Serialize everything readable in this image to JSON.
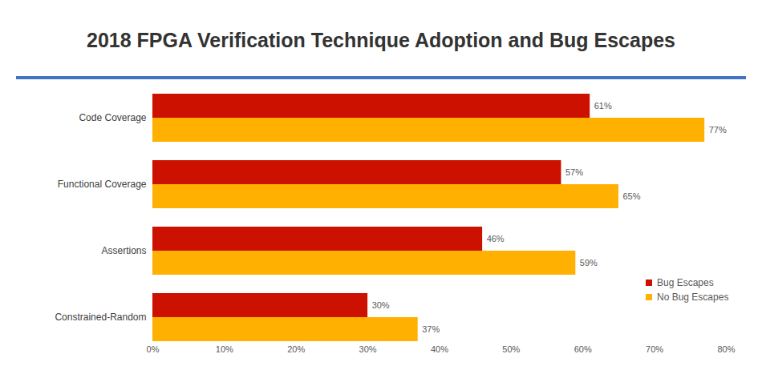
{
  "chart_data": {
    "type": "bar",
    "title": "2018 FPGA Verification Technique Adoption and Bug Escapes",
    "orientation": "horizontal",
    "categories": [
      "Code Coverage",
      "Functional Coverage",
      "Assertions",
      "Constrained-Random"
    ],
    "series": [
      {
        "name": "Bug Escapes",
        "color": "#cc1100",
        "values": [
          61,
          57,
          46,
          30
        ],
        "value_labels": [
          "61%",
          "57%",
          "46%",
          "30%"
        ]
      },
      {
        "name": "No Bug Escapes",
        "color": "#ffb000",
        "values": [
          77,
          65,
          59,
          37
        ],
        "value_labels": [
          "77%",
          "65%",
          "59%",
          "37%"
        ]
      }
    ],
    "xlim": [
      0,
      80
    ],
    "xticks": [
      {
        "value": 0,
        "label": "0%"
      },
      {
        "value": 10,
        "label": "10%"
      },
      {
        "value": 20,
        "label": "20%"
      },
      {
        "value": 30,
        "label": "30%"
      },
      {
        "value": 40,
        "label": "40%"
      },
      {
        "value": 50,
        "label": "50%"
      },
      {
        "value": 60,
        "label": "60%"
      },
      {
        "value": 70,
        "label": "70%"
      },
      {
        "value": 80,
        "label": "80%"
      }
    ],
    "data_labels": true,
    "grid": false,
    "legend": "right"
  }
}
